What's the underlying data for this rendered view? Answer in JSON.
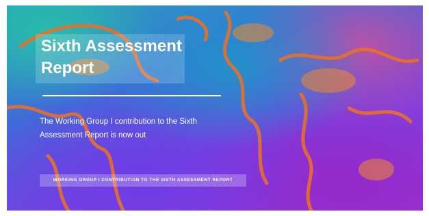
{
  "banner": {
    "title": "Sixth Assessment Report",
    "subtitle": "The Working Group I contribution to the Sixth Assessment Report is now out",
    "button": "WORKING GROUP I CONTRIBUTION TO THE SIXTH ASSESSMENT REPORT"
  }
}
